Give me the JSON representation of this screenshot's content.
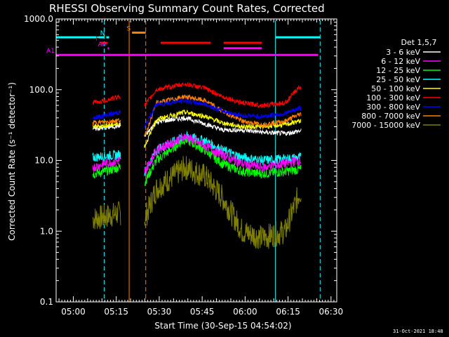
{
  "chart_data": {
    "type": "line",
    "title": "RHESSI Observing Summary Count Rates, Corrected",
    "xlabel": "Start Time (30-Sep-15 04:54:02)",
    "ylabel": "Corrected Count Rate (s⁻¹ detector⁻¹)",
    "yscale": "log",
    "ylim": [
      0.1,
      1000
    ],
    "xlim_minutes_after_0454": [
      0,
      98
    ],
    "x_ticks": [
      {
        "label": "05:00",
        "t": 6
      },
      {
        "label": "05:15",
        "t": 21
      },
      {
        "label": "05:30",
        "t": 36
      },
      {
        "label": "05:45",
        "t": 51
      },
      {
        "label": "06:00",
        "t": 66
      },
      {
        "label": "06:15",
        "t": 81
      },
      {
        "label": "06:30",
        "t": 96
      }
    ],
    "y_ticks": [
      {
        "label": "1000.0",
        "v": 1000
      },
      {
        "label": "100.0",
        "v": 100
      },
      {
        "label": "10.0",
        "v": 10
      },
      {
        "label": "1.0",
        "v": 1
      },
      {
        "label": "0.1",
        "v": 0.1
      }
    ],
    "legend_title": "Det 1,5,7",
    "legend_position": "right",
    "footer_date": "31-Oct-2021 18:48",
    "segments": [
      [
        12.8,
        22.6
      ],
      [
        30.8,
        85.6
      ]
    ],
    "series": [
      {
        "name": "3 - 6 keV",
        "color": "#ffffff",
        "values": [
          [
            13,
            28
          ],
          [
            17,
            29
          ],
          [
            22,
            31
          ],
          [
            31,
            22
          ],
          [
            35,
            35
          ],
          [
            45,
            40
          ],
          [
            52,
            33
          ],
          [
            58,
            27
          ],
          [
            65,
            27
          ],
          [
            72,
            25
          ],
          [
            80,
            24
          ],
          [
            85,
            26
          ]
        ]
      },
      {
        "name": "6 - 12 keV",
        "color": "#ff00ff",
        "values": [
          [
            13,
            8
          ],
          [
            17,
            9
          ],
          [
            22,
            10
          ],
          [
            31,
            7
          ],
          [
            35,
            14
          ],
          [
            45,
            22
          ],
          [
            52,
            16
          ],
          [
            58,
            12
          ],
          [
            65,
            9
          ],
          [
            72,
            8
          ],
          [
            80,
            9
          ],
          [
            85,
            10
          ]
        ]
      },
      {
        "name": "12 - 25 keV",
        "color": "#00ff00",
        "values": [
          [
            13,
            6.5
          ],
          [
            17,
            7
          ],
          [
            22,
            8
          ],
          [
            31,
            5
          ],
          [
            35,
            10
          ],
          [
            45,
            20
          ],
          [
            52,
            14
          ],
          [
            58,
            9
          ],
          [
            65,
            7
          ],
          [
            72,
            6.5
          ],
          [
            80,
            7
          ],
          [
            85,
            7.5
          ]
        ]
      },
      {
        "name": "25 - 50 keV",
        "color": "#00ffff",
        "values": [
          [
            13,
            11
          ],
          [
            17,
            11.5
          ],
          [
            22,
            12
          ],
          [
            31,
            7
          ],
          [
            35,
            14
          ],
          [
            45,
            22
          ],
          [
            52,
            19
          ],
          [
            58,
            14
          ],
          [
            65,
            11
          ],
          [
            72,
            10
          ],
          [
            80,
            10.5
          ],
          [
            85,
            11
          ]
        ]
      },
      {
        "name": "50 - 100 keV",
        "color": "#ffff00",
        "values": [
          [
            13,
            30
          ],
          [
            17,
            31
          ],
          [
            22,
            33
          ],
          [
            31,
            16
          ],
          [
            35,
            38
          ],
          [
            45,
            48
          ],
          [
            52,
            42
          ],
          [
            58,
            34
          ],
          [
            65,
            30
          ],
          [
            72,
            30
          ],
          [
            80,
            32
          ],
          [
            85,
            36
          ]
        ]
      },
      {
        "name": "100 - 300 keV",
        "color": "#ff0000",
        "values": [
          [
            13,
            66
          ],
          [
            17,
            70
          ],
          [
            22,
            80
          ],
          [
            31,
            60
          ],
          [
            35,
            100
          ],
          [
            45,
            120
          ],
          [
            52,
            105
          ],
          [
            58,
            80
          ],
          [
            65,
            65
          ],
          [
            72,
            60
          ],
          [
            80,
            65
          ],
          [
            85,
            110
          ]
        ]
      },
      {
        "name": "300 - 800 keV",
        "color": "#0000ff",
        "values": [
          [
            13,
            40
          ],
          [
            17,
            43
          ],
          [
            22,
            48
          ],
          [
            31,
            30
          ],
          [
            35,
            62
          ],
          [
            45,
            70
          ],
          [
            52,
            62
          ],
          [
            58,
            50
          ],
          [
            65,
            43
          ],
          [
            72,
            42
          ],
          [
            80,
            46
          ],
          [
            85,
            55
          ]
        ]
      },
      {
        "name": "800 - 7000 keV",
        "color": "#ff8000",
        "values": [
          [
            13,
            34
          ],
          [
            17,
            35
          ],
          [
            22,
            37
          ],
          [
            31,
            22
          ],
          [
            35,
            65
          ],
          [
            45,
            80
          ],
          [
            52,
            70
          ],
          [
            58,
            50
          ],
          [
            65,
            36
          ],
          [
            72,
            32
          ],
          [
            80,
            36
          ],
          [
            85,
            45
          ]
        ]
      },
      {
        "name": "7000 - 15000 keV",
        "color": "#808000",
        "values": [
          [
            13,
            1.5
          ],
          [
            17,
            1.6
          ],
          [
            22,
            1.8
          ],
          [
            31,
            1.5
          ],
          [
            35,
            4
          ],
          [
            45,
            8
          ],
          [
            52,
            6
          ],
          [
            58,
            3
          ],
          [
            65,
            1
          ],
          [
            72,
            0.8
          ],
          [
            80,
            1
          ],
          [
            85,
            3.5
          ]
        ]
      }
    ],
    "vertical_lines": [
      {
        "t": 0,
        "color": "#00ffff",
        "style": "solid"
      },
      {
        "t": 16.8,
        "color": "#00ffff",
        "style": "dashed"
      },
      {
        "t": 25.5,
        "color": "#ff8000",
        "style": "solid"
      },
      {
        "t": 31.3,
        "color": "#ff8000",
        "style": "dashed"
      },
      {
        "t": 76.6,
        "color": "#00ffff",
        "style": "solid"
      },
      {
        "t": 92.2,
        "color": "#00ffff",
        "style": "dashed"
      }
    ],
    "flag_bars": [
      {
        "label": "",
        "color": "#00ffff",
        "y": 550,
        "ranges": [
          [
            0,
            16.8
          ],
          [
            76.6,
            92.2
          ]
        ]
      },
      {
        "label": "N",
        "color": "#00ffff",
        "y": 550,
        "ranges": [
          [
            17.5,
            18.5
          ]
        ]
      },
      {
        "label": "S",
        "color": "#ff8000",
        "y": 640,
        "ranges": [
          [
            26.5,
            31.3
          ]
        ]
      },
      {
        "label": "F",
        "color": "#ff0000",
        "y": 460,
        "ranges": [
          [
            15.5,
            18.0
          ],
          [
            36.5,
            54.0
          ],
          [
            58.5,
            71.8
          ]
        ]
      },
      {
        "label": "A0",
        "color": "#ff00ff",
        "y": 385,
        "ranges": [
          [
            18.0,
            18.5
          ],
          [
            58.5,
            71.8
          ]
        ]
      },
      {
        "label": "A1",
        "color": "#ff00ff",
        "y": 310,
        "ranges": [
          [
            0,
            91.5
          ]
        ]
      }
    ]
  }
}
